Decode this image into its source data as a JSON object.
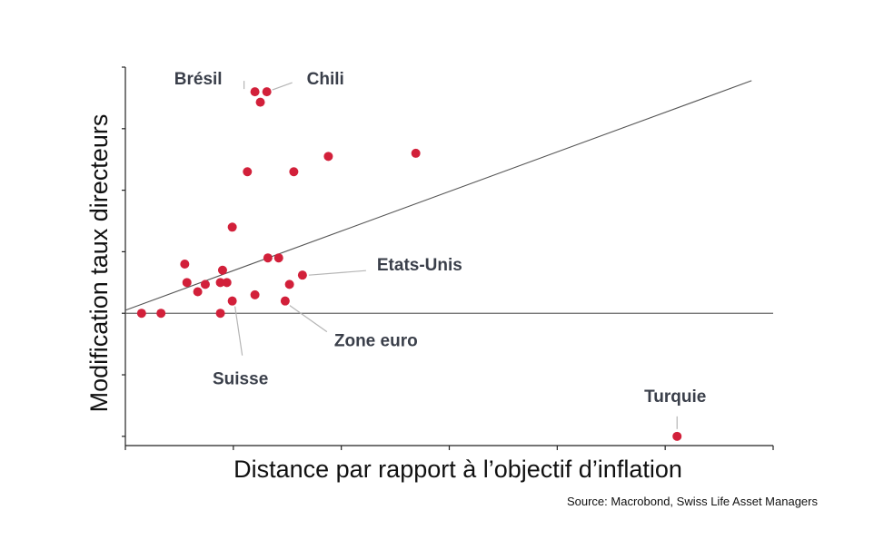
{
  "chart_data": {
    "type": "scatter",
    "xlabel": "Distance par rapport à l’objectif d’inflation",
    "ylabel": "Modification taux directeurs",
    "source": "Source: Macrobond, Swiss Life Asset Managers",
    "xlim": [
      -1.0,
      5.0
    ],
    "ylim": [
      -2.15,
      4.0
    ],
    "x_ticks": [
      -1,
      0,
      1,
      2,
      3,
      4,
      5
    ],
    "y_ticks": [
      -2,
      -1,
      0,
      1,
      2,
      3,
      4
    ],
    "grid": false,
    "point_color": "#d2203a",
    "trend_line": {
      "x": [
        -1.0,
        4.8
      ],
      "y": [
        0.05,
        3.78
      ]
    },
    "series": [
      {
        "points": [
          {
            "x": -0.85,
            "y": 0.0
          },
          {
            "x": -0.67,
            "y": 0.0
          },
          {
            "x": -0.45,
            "y": 0.8
          },
          {
            "x": -0.43,
            "y": 0.5
          },
          {
            "x": -0.33,
            "y": 0.35
          },
          {
            "x": -0.26,
            "y": 0.47
          },
          {
            "x": -0.12,
            "y": 0.5
          },
          {
            "x": -0.1,
            "y": 0.7
          },
          {
            "x": -0.06,
            "y": 0.5
          },
          {
            "x": -0.12,
            "y": 0.0
          },
          {
            "x": -0.01,
            "y": 0.2
          },
          {
            "x": -0.01,
            "y": 1.4
          },
          {
            "x": 0.13,
            "y": 2.3
          },
          {
            "x": 0.2,
            "y": 3.6
          },
          {
            "x": 0.25,
            "y": 3.43
          },
          {
            "x": 0.31,
            "y": 3.6
          },
          {
            "x": 0.2,
            "y": 0.3
          },
          {
            "x": 0.32,
            "y": 0.9
          },
          {
            "x": 0.42,
            "y": 0.9
          },
          {
            "x": 0.48,
            "y": 0.2
          },
          {
            "x": 0.52,
            "y": 0.47
          },
          {
            "x": 0.56,
            "y": 2.3
          },
          {
            "x": 0.64,
            "y": 0.62
          },
          {
            "x": 0.88,
            "y": 2.55
          },
          {
            "x": 1.69,
            "y": 2.6
          },
          {
            "x": 4.11,
            "y": -2.0
          }
        ]
      }
    ],
    "annotations": [
      {
        "label": "Brésil",
        "x": 0.2,
        "y": 3.6
      },
      {
        "label": "Chili",
        "x": 0.31,
        "y": 3.6
      },
      {
        "label": "Etats-Unis",
        "x": 0.64,
        "y": 0.62
      },
      {
        "label": "Zone euro",
        "x": 0.48,
        "y": 0.2
      },
      {
        "label": "Suisse",
        "x": -0.01,
        "y": 0.2
      },
      {
        "label": "Turquie",
        "x": 4.11,
        "y": -2.0
      }
    ]
  }
}
